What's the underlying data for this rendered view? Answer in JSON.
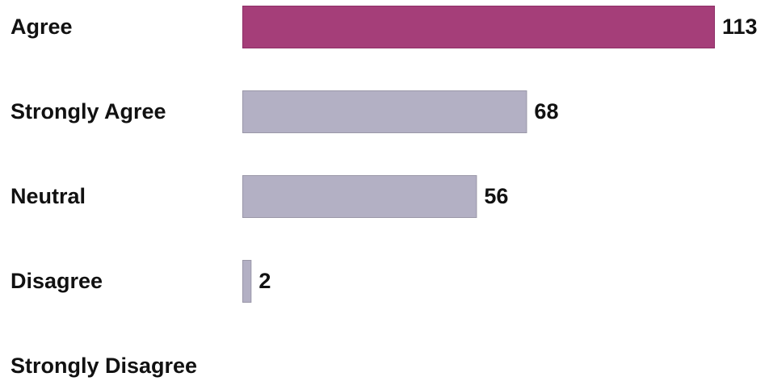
{
  "chart_data": {
    "type": "bar",
    "orientation": "horizontal",
    "categories": [
      "Agree",
      "Strongly Agree",
      "Neutral",
      "Disagree",
      "Strongly Disagree"
    ],
    "values": [
      113,
      68,
      56,
      2,
      0
    ],
    "value_labels": [
      "113",
      "68",
      "56",
      "2",
      ""
    ],
    "highlight_index": 0,
    "colors": {
      "highlight": "#a53e79",
      "default": "#b3b0c4",
      "bar_border": "#9a97a8",
      "text": "#111111"
    },
    "xlim": [
      0,
      113
    ],
    "grid": false,
    "legend": "none"
  }
}
